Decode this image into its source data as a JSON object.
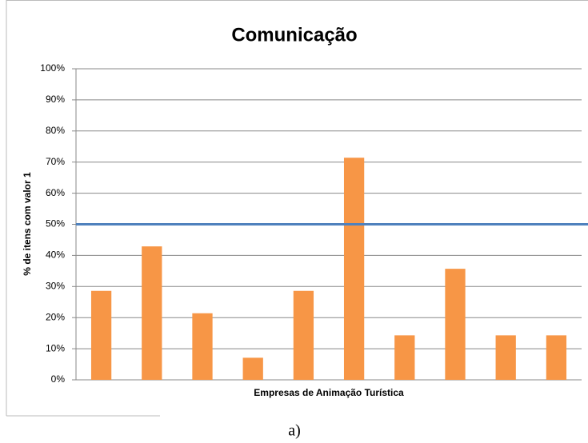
{
  "chart_data": {
    "type": "bar",
    "title": "Comunicação",
    "x_label": "Empresas de Animação Turística",
    "y_label": "% de itens com valor 1",
    "categories": [
      null,
      null,
      null,
      null,
      null,
      null,
      null,
      null,
      null,
      null
    ],
    "values": [
      28.6,
      42.9,
      21.4,
      7.1,
      28.6,
      71.4,
      14.3,
      35.7,
      14.3,
      14.3
    ],
    "color": "#f79646",
    "ylim": [
      0,
      100
    ],
    "yticks": [
      {
        "value": 0,
        "label": "0%"
      },
      {
        "value": 10,
        "label": "10%"
      },
      {
        "value": 20,
        "label": "20%"
      },
      {
        "value": 30,
        "label": "30%"
      },
      {
        "value": 40,
        "label": "40%"
      },
      {
        "value": 50,
        "label": "50%"
      },
      {
        "value": 60,
        "label": "60%"
      },
      {
        "value": 70,
        "label": "70%"
      },
      {
        "value": 80,
        "label": "80%"
      },
      {
        "value": 90,
        "label": "90%"
      },
      {
        "value": 100,
        "label": "100%"
      }
    ],
    "grid": true,
    "reference_line": {
      "value": 50,
      "color": "#4f81bd"
    }
  },
  "caption": "a)"
}
